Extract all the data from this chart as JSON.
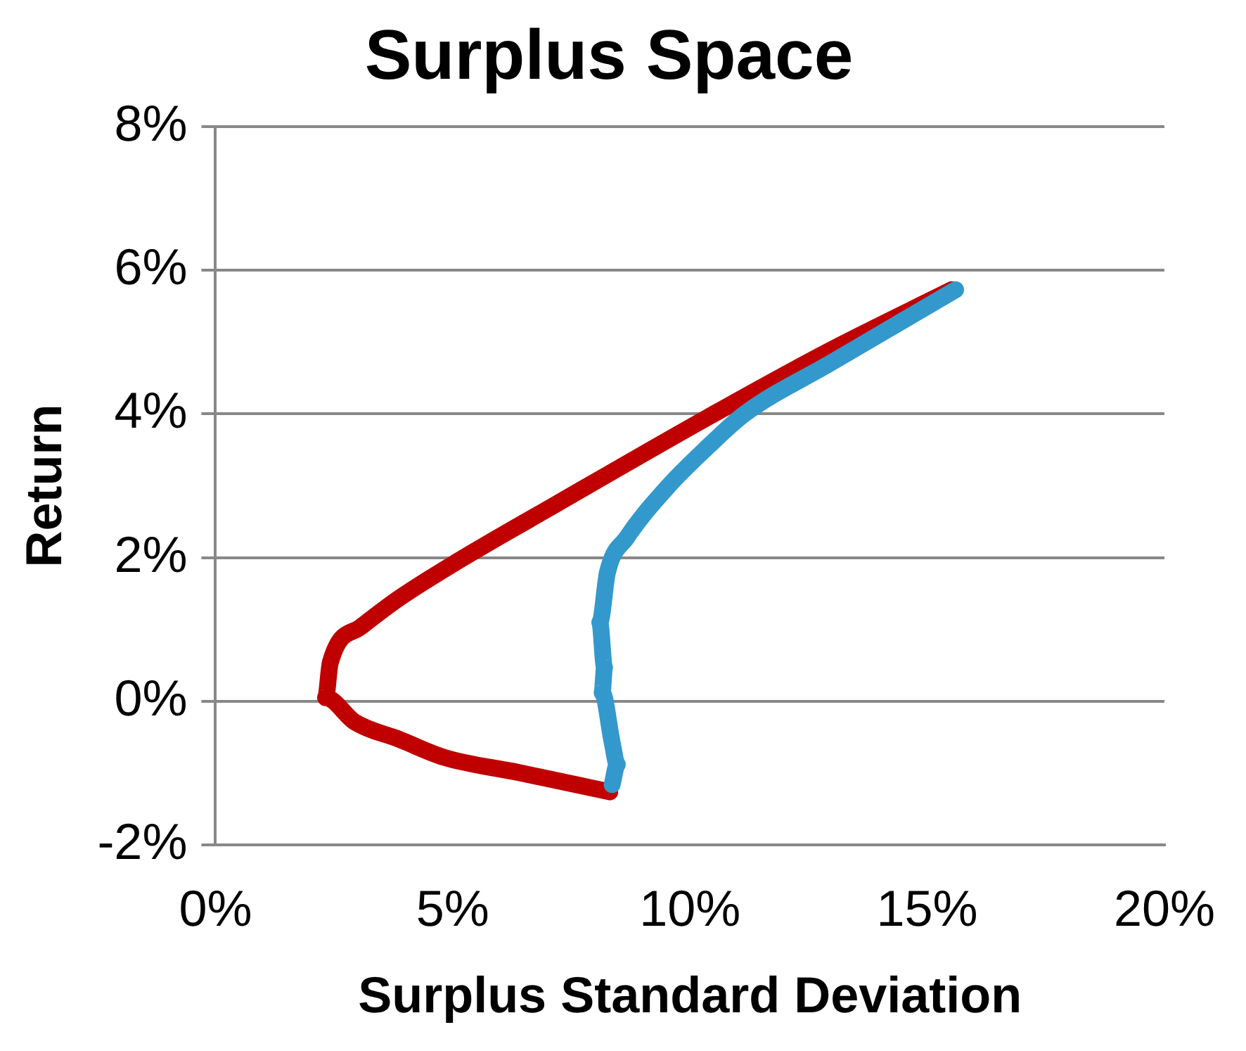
{
  "chart_data": {
    "type": "line",
    "title": "Surplus Space",
    "xlabel": "Surplus Standard Deviation",
    "ylabel": "Return",
    "xlim": [
      0,
      20
    ],
    "xticks": [
      {
        "value": 0,
        "label": "0%"
      },
      {
        "value": 5,
        "label": "5%"
      },
      {
        "value": 10,
        "label": "10%"
      },
      {
        "value": 15,
        "label": "15%"
      },
      {
        "value": 20,
        "label": "20%"
      }
    ],
    "ylim": [
      -2,
      8
    ],
    "yticks": [
      {
        "value": -2,
        "label": "-2%"
      },
      {
        "value": 0,
        "label": "0%"
      },
      {
        "value": 2,
        "label": "2%"
      },
      {
        "value": 4,
        "label": "4%"
      },
      {
        "value": 6,
        "label": "6%"
      },
      {
        "value": 8,
        "label": "8%"
      }
    ],
    "grid": "y",
    "legend": false,
    "marker": "none",
    "line_style": "solid",
    "series": [
      {
        "color": "#3399cc",
        "x": [
          8.36,
          8.47,
          8.36,
          8.15,
          8.2,
          8.1,
          8.26,
          8.67,
          9.51,
          10.34,
          11.17,
          12.94,
          15.6
        ],
        "values": [
          -1.16,
          -0.88,
          -0.57,
          0.12,
          0.47,
          1.1,
          1.79,
          2.28,
          2.97,
          3.52,
          4.01,
          4.7,
          5.73
        ]
      },
      {
        "color": "#c00000",
        "x": [
          8.31,
          6.38,
          4.82,
          3.88,
          2.94,
          2.32,
          2.42,
          3.05,
          3.88,
          5.13,
          7.22,
          10.34,
          12.94,
          15.52
        ],
        "values": [
          -1.26,
          -0.99,
          -0.78,
          -0.53,
          -0.29,
          0.05,
          0.54,
          1.03,
          1.44,
          1.96,
          2.76,
          3.94,
          4.88,
          5.73
        ]
      }
    ]
  }
}
